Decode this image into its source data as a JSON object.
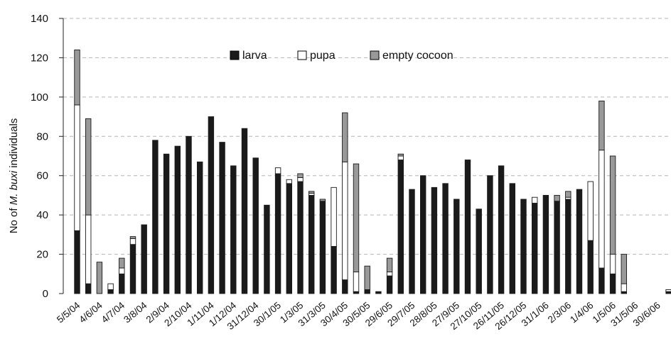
{
  "chart_data": {
    "type": "bar",
    "stacked": true,
    "title": "",
    "xlabel": "",
    "ylabel_prefix": "No of ",
    "ylabel_italic": "M. buxi",
    "ylabel_suffix": " individuals",
    "ylim": [
      0,
      140
    ],
    "yticks": [
      0,
      20,
      40,
      60,
      80,
      100,
      120,
      140
    ],
    "grid": "horizontal dashed",
    "legend_position": "top-center",
    "x_tick_labels": [
      "5/5/04",
      "4/6/04",
      "4/7/04",
      "3/8/04",
      "2/9/04",
      "2/10/04",
      "1/11/04",
      "1/12/04",
      "31/12/04",
      "30/1/05",
      "1/3/05",
      "31/3/05",
      "30/4/05",
      "30/5/05",
      "29/6/05",
      "29/7/05",
      "28/8/05",
      "27/9/05",
      "27/10/05",
      "26/11/05",
      "26/12/05",
      "31/1/06",
      "2/3/06",
      "1/4/06",
      "1/5/06",
      "31/5/06",
      "30/6/06"
    ],
    "series": [
      {
        "name": "larva",
        "color": "#1a1a1a",
        "values": [
          32,
          5,
          0,
          2,
          10,
          25,
          35,
          78,
          71,
          75,
          80,
          67,
          90,
          77,
          65,
          84,
          69,
          45,
          61,
          56,
          57,
          50,
          47,
          24,
          7,
          1,
          2,
          1,
          9,
          68,
          53,
          60,
          54,
          56,
          48,
          68,
          43,
          60,
          65,
          56,
          48,
          46,
          50,
          47,
          48,
          53,
          27,
          13,
          10,
          1,
          0,
          0,
          0,
          1
        ]
      },
      {
        "name": "pupa",
        "color": "#ffffff",
        "values": [
          64,
          35,
          0,
          3,
          3,
          3,
          0,
          0,
          0,
          0,
          0,
          0,
          0,
          0,
          0,
          0,
          0,
          0,
          3,
          2,
          2,
          1,
          0,
          30,
          60,
          10,
          0,
          0,
          2,
          2,
          0,
          0,
          0,
          0,
          0,
          0,
          0,
          0,
          0,
          0,
          0,
          3,
          0,
          0,
          1,
          0,
          30,
          60,
          10,
          4,
          0,
          0,
          0,
          1
        ]
      },
      {
        "name": "empty cocoon",
        "color": "#999999",
        "values": [
          28,
          49,
          16,
          0,
          5,
          1,
          0,
          0,
          0,
          0,
          0,
          0,
          0,
          0,
          0,
          0,
          0,
          0,
          0,
          0,
          2,
          1,
          1,
          0,
          25,
          55,
          12,
          0,
          7,
          1,
          0,
          0,
          0,
          0,
          0,
          0,
          0,
          0,
          0,
          0,
          0,
          0,
          0,
          3,
          3,
          0,
          0,
          25,
          50,
          15,
          0,
          0,
          0,
          0
        ]
      }
    ]
  }
}
